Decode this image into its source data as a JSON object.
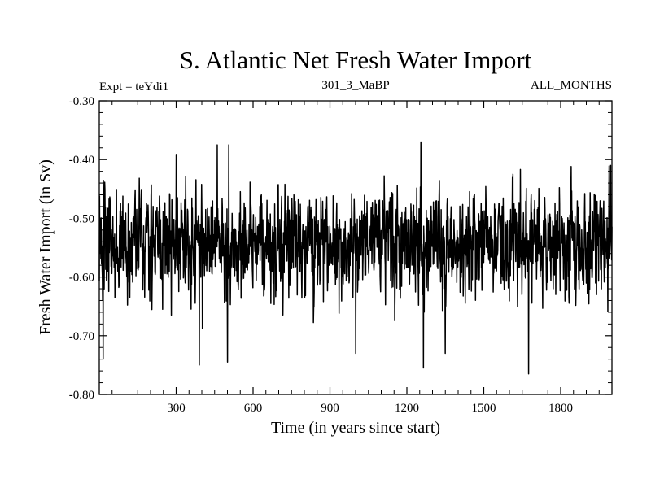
{
  "chart_data": {
    "type": "line",
    "title": "S. Atlantic Net Fresh Water Import",
    "subtitle_left": "Expt = teYdi1",
    "subtitle_center": "301_3_MaBP",
    "subtitle_right": "ALL_MONTHS",
    "xlabel": "Time (in years since start)",
    "ylabel": "Fresh Water Import (in Sv)",
    "xlim": [
      0,
      2000
    ],
    "ylim": [
      -0.8,
      -0.3
    ],
    "x_ticks": [
      300,
      600,
      900,
      1200,
      1500,
      1800
    ],
    "x_tick_labels": [
      "300",
      "600",
      "900",
      "1200",
      "1500",
      "1800"
    ],
    "y_ticks": [
      -0.3,
      -0.4,
      -0.5,
      -0.6,
      -0.7,
      -0.8
    ],
    "y_tick_labels": [
      "-0.30",
      "-0.40",
      "-0.50",
      "-0.60",
      "-0.70",
      "-0.80"
    ],
    "series": [
      {
        "name": "Net Fresh Water Import",
        "summary": {
          "mean": -0.545,
          "min": -0.765,
          "max": -0.37,
          "n_points": 2000
        },
        "extremes": [
          {
            "x": 15,
            "y": -0.74
          },
          {
            "x": 390,
            "y": -0.75
          },
          {
            "x": 460,
            "y": -0.375
          },
          {
            "x": 500,
            "y": -0.745
          },
          {
            "x": 505,
            "y": -0.375
          },
          {
            "x": 1000,
            "y": -0.73
          },
          {
            "x": 1255,
            "y": -0.37
          },
          {
            "x": 1265,
            "y": -0.755
          },
          {
            "x": 1350,
            "y": -0.73
          },
          {
            "x": 1675,
            "y": -0.765
          },
          {
            "x": 1995,
            "y": -0.41
          }
        ]
      }
    ]
  }
}
